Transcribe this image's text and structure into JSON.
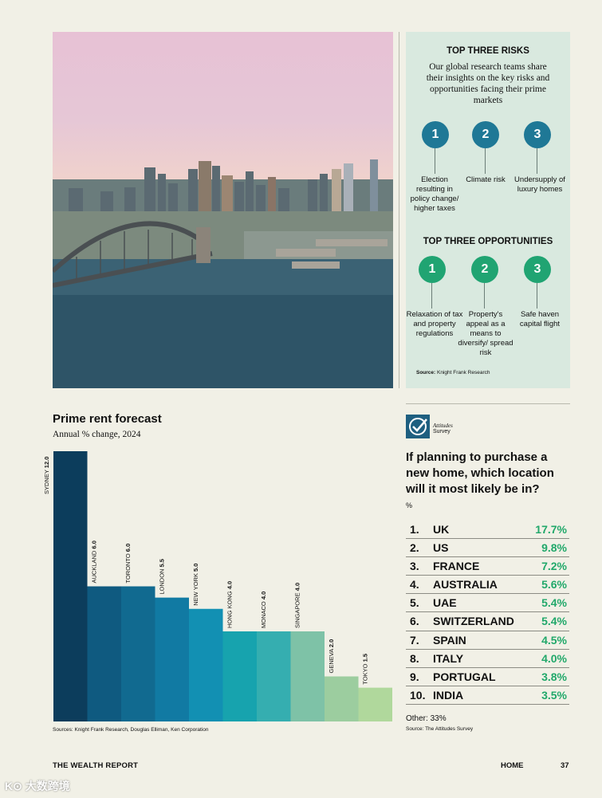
{
  "risks": {
    "title": "TOP THREE RISKS",
    "intro": "Our global research teams share their insights on the key risks and opportunities facing their prime markets",
    "items": [
      {
        "num": "1",
        "label": "Election resulting in policy change/ higher taxes"
      },
      {
        "num": "2",
        "label": "Climate risk"
      },
      {
        "num": "3",
        "label": "Undersupply of luxury homes"
      }
    ]
  },
  "opportunities": {
    "title": "TOP THREE OPPORTUNITIES",
    "items": [
      {
        "num": "1",
        "label": "Relaxation of tax and property regulations"
      },
      {
        "num": "2",
        "label": "Property's appeal as a means to diversify/ spread risk"
      },
      {
        "num": "3",
        "label": "Safe haven capital flight"
      }
    ]
  },
  "panel_source": {
    "label": "Source:",
    "text": "Knight Frank Research"
  },
  "chart_data": {
    "type": "bar",
    "title": "Prime rent forecast",
    "subtitle": "Annual % change, 2024",
    "categories": [
      "SYDNEY",
      "AUCKLAND",
      "TORONTO",
      "LONDON",
      "NEW YORK",
      "HONG KONG",
      "MONACO",
      "SINGAPORE",
      "GENEVA",
      "TOKYO"
    ],
    "values": [
      12.0,
      6.0,
      6.0,
      5.5,
      5.0,
      4.0,
      4.0,
      4.0,
      2.0,
      1.5
    ],
    "value_labels": [
      "12.0",
      "6.0",
      "6.0",
      "5.5",
      "5.0",
      "4.0",
      "4.0",
      "4.0",
      "2.0",
      "1.5"
    ],
    "colors": [
      "#0c3d5c",
      "#0f5a80",
      "#116a90",
      "#117aa3",
      "#1290b3",
      "#17a3ae",
      "#35aeb0",
      "#7ec2a7",
      "#9ccd9f",
      "#b0d89c"
    ],
    "ylim": [
      0,
      12
    ],
    "source": "Sources: Knight Frank Research, Douglas Elliman, Ken Corporation"
  },
  "survey": {
    "logo_line1": "Attitudes",
    "logo_line2": "Survey",
    "question": "If planning to purchase a new home, which location will it most likely be in?",
    "unit": "%",
    "rows": [
      {
        "rank": "1.",
        "country": "UK",
        "value": "17.7%"
      },
      {
        "rank": "2.",
        "country": "US",
        "value": "9.8%"
      },
      {
        "rank": "3.",
        "country": "FRANCE",
        "value": "7.2%"
      },
      {
        "rank": "4.",
        "country": "AUSTRALIA",
        "value": "5.6%"
      },
      {
        "rank": "5.",
        "country": "UAE",
        "value": "5.4%"
      },
      {
        "rank": "6.",
        "country": "SWITZERLAND",
        "value": "5.4%"
      },
      {
        "rank": "7.",
        "country": "SPAIN",
        "value": "4.5%"
      },
      {
        "rank": "8.",
        "country": "ITALY",
        "value": "4.0%"
      },
      {
        "rank": "9.",
        "country": "PORTUGAL",
        "value": "3.8%"
      },
      {
        "rank": "10.",
        "country": "INDIA",
        "value": "3.5%"
      }
    ],
    "other": "Other: 33%",
    "source": "Source: The Attitudes Survey"
  },
  "footer": {
    "left": "THE WEALTH REPORT",
    "home": "HOME",
    "page": "37"
  },
  "watermark": "K⊙ 大数跨境"
}
